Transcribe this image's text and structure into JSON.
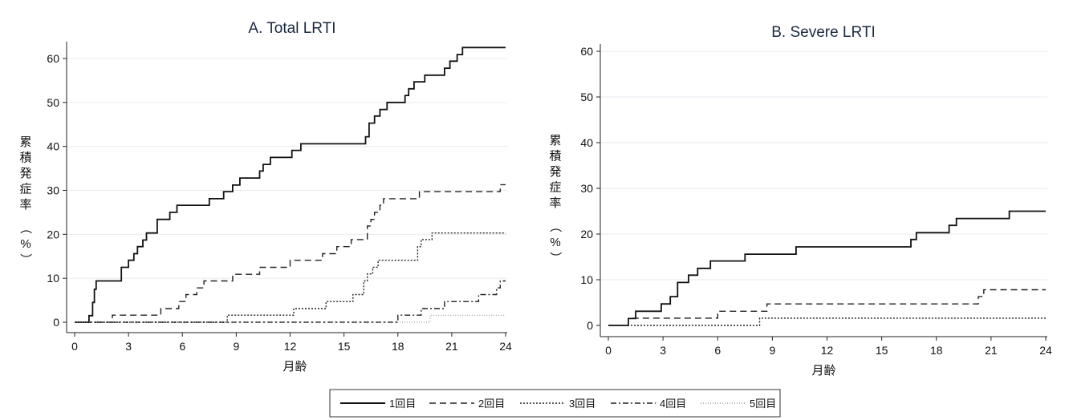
{
  "chart_data": [
    {
      "type": "line",
      "step": true,
      "title": "A. Total LRTI",
      "xlabel": "月齢",
      "ylabel": "累積発症率（%）",
      "xlim": [
        0,
        24
      ],
      "ylim": [
        0,
        62.5
      ],
      "xticks": [
        0,
        3,
        6,
        9,
        12,
        15,
        18,
        21,
        24
      ],
      "yticks": [
        0,
        10,
        20,
        30,
        40,
        50,
        60
      ],
      "ytick_labels": [
        "0",
        "10",
        "20",
        "30",
        "40",
        "50",
        "60"
      ],
      "grid": true,
      "series": [
        {
          "name": "1回目",
          "points": [
            [
              0,
              0
            ],
            [
              0.8,
              0
            ],
            [
              0.8,
              1.5
            ],
            [
              1.0,
              1.5
            ],
            [
              1.0,
              4.5
            ],
            [
              1.1,
              4.5
            ],
            [
              1.1,
              7.5
            ],
            [
              1.2,
              7.5
            ],
            [
              1.2,
              9.4
            ],
            [
              2.6,
              9.4
            ],
            [
              2.6,
              12.5
            ],
            [
              3.0,
              12.5
            ],
            [
              3.0,
              14.1
            ],
            [
              3.3,
              14.1
            ],
            [
              3.3,
              15.6
            ],
            [
              3.5,
              15.6
            ],
            [
              3.5,
              17.2
            ],
            [
              3.8,
              17.2
            ],
            [
              3.8,
              18.7
            ],
            [
              4.0,
              18.7
            ],
            [
              4.0,
              20.3
            ],
            [
              4.6,
              20.3
            ],
            [
              4.6,
              23.4
            ],
            [
              5.3,
              23.4
            ],
            [
              5.3,
              25.0
            ],
            [
              5.7,
              25.0
            ],
            [
              5.7,
              26.6
            ],
            [
              7.5,
              26.6
            ],
            [
              7.5,
              28.1
            ],
            [
              8.3,
              28.1
            ],
            [
              8.3,
              29.7
            ],
            [
              8.8,
              29.7
            ],
            [
              8.8,
              31.2
            ],
            [
              9.2,
              31.2
            ],
            [
              9.2,
              32.8
            ],
            [
              10.3,
              32.8
            ],
            [
              10.3,
              34.4
            ],
            [
              10.5,
              34.4
            ],
            [
              10.5,
              35.9
            ],
            [
              10.9,
              35.9
            ],
            [
              10.9,
              37.5
            ],
            [
              12.1,
              37.5
            ],
            [
              12.1,
              39.1
            ],
            [
              12.6,
              39.1
            ],
            [
              12.6,
              40.6
            ],
            [
              16.2,
              40.6
            ],
            [
              16.2,
              42.2
            ],
            [
              16.4,
              42.2
            ],
            [
              16.4,
              45.3
            ],
            [
              16.7,
              45.3
            ],
            [
              16.7,
              46.9
            ],
            [
              17.0,
              46.9
            ],
            [
              17.0,
              48.4
            ],
            [
              17.4,
              48.4
            ],
            [
              17.4,
              50.0
            ],
            [
              18.4,
              50.0
            ],
            [
              18.4,
              51.6
            ],
            [
              18.6,
              51.6
            ],
            [
              18.6,
              53.1
            ],
            [
              18.9,
              53.1
            ],
            [
              18.9,
              54.7
            ],
            [
              19.5,
              54.7
            ],
            [
              19.5,
              56.2
            ],
            [
              20.6,
              56.2
            ],
            [
              20.6,
              57.8
            ],
            [
              20.9,
              57.8
            ],
            [
              20.9,
              59.4
            ],
            [
              21.3,
              59.4
            ],
            [
              21.3,
              60.9
            ],
            [
              21.6,
              60.9
            ],
            [
              21.6,
              62.5
            ],
            [
              24,
              62.5
            ]
          ]
        },
        {
          "name": "2回目",
          "points": [
            [
              0,
              0
            ],
            [
              2.1,
              0
            ],
            [
              2.1,
              1.6
            ],
            [
              4.8,
              1.6
            ],
            [
              4.8,
              3.1
            ],
            [
              5.8,
              3.1
            ],
            [
              5.8,
              4.7
            ],
            [
              6.2,
              4.7
            ],
            [
              6.2,
              6.3
            ],
            [
              6.8,
              6.3
            ],
            [
              6.8,
              7.8
            ],
            [
              7.2,
              7.8
            ],
            [
              7.2,
              9.4
            ],
            [
              8.8,
              9.4
            ],
            [
              8.8,
              10.9
            ],
            [
              10.3,
              10.9
            ],
            [
              10.3,
              12.5
            ],
            [
              12.0,
              12.5
            ],
            [
              12.0,
              14.1
            ],
            [
              13.8,
              14.1
            ],
            [
              13.8,
              15.6
            ],
            [
              14.6,
              15.6
            ],
            [
              14.6,
              17.2
            ],
            [
              15.4,
              17.2
            ],
            [
              15.4,
              18.8
            ],
            [
              16.3,
              18.8
            ],
            [
              16.3,
              21.9
            ],
            [
              16.5,
              21.9
            ],
            [
              16.5,
              23.4
            ],
            [
              16.7,
              23.4
            ],
            [
              16.7,
              25.0
            ],
            [
              17.0,
              25.0
            ],
            [
              17.0,
              26.6
            ],
            [
              17.2,
              26.6
            ],
            [
              17.2,
              28.1
            ],
            [
              19.2,
              28.1
            ],
            [
              19.2,
              29.7
            ],
            [
              23.7,
              29.7
            ],
            [
              23.7,
              31.3
            ],
            [
              24,
              31.3
            ]
          ]
        },
        {
          "name": "3回目",
          "points": [
            [
              0,
              0
            ],
            [
              8.5,
              0
            ],
            [
              8.5,
              1.6
            ],
            [
              12.2,
              1.6
            ],
            [
              12.2,
              3.1
            ],
            [
              14.0,
              3.1
            ],
            [
              14.0,
              4.7
            ],
            [
              15.5,
              4.7
            ],
            [
              15.5,
              6.3
            ],
            [
              16.1,
              6.3
            ],
            [
              16.1,
              9.4
            ],
            [
              16.3,
              9.4
            ],
            [
              16.3,
              11.0
            ],
            [
              16.6,
              11.0
            ],
            [
              16.6,
              12.5
            ],
            [
              16.9,
              12.5
            ],
            [
              16.9,
              14.1
            ],
            [
              19.1,
              14.1
            ],
            [
              19.1,
              17.2
            ],
            [
              19.3,
              17.2
            ],
            [
              19.3,
              18.8
            ],
            [
              19.9,
              18.8
            ],
            [
              19.9,
              20.3
            ],
            [
              24,
              20.3
            ]
          ]
        },
        {
          "name": "4回目",
          "points": [
            [
              0,
              0
            ],
            [
              18.0,
              0
            ],
            [
              18.0,
              1.6
            ],
            [
              19.3,
              1.6
            ],
            [
              19.3,
              3.1
            ],
            [
              20.6,
              3.1
            ],
            [
              20.6,
              4.7
            ],
            [
              22.5,
              4.7
            ],
            [
              22.5,
              6.3
            ],
            [
              23.5,
              6.3
            ],
            [
              23.5,
              7.8
            ],
            [
              23.7,
              7.8
            ],
            [
              23.7,
              9.4
            ],
            [
              24,
              9.4
            ]
          ]
        },
        {
          "name": "5回目",
          "points": [
            [
              0,
              0
            ],
            [
              19.8,
              0
            ],
            [
              19.8,
              1.6
            ],
            [
              24,
              1.6
            ]
          ]
        }
      ]
    },
    {
      "type": "line",
      "step": true,
      "title": "B. Severe LRTI",
      "xlabel": "月齢",
      "ylabel": "累積発症率（%）",
      "xlim": [
        0,
        24
      ],
      "ylim": [
        0,
        60
      ],
      "xticks": [
        0,
        3,
        6,
        9,
        12,
        15,
        18,
        21,
        24
      ],
      "yticks": [
        0,
        10,
        20,
        30,
        40,
        50,
        60
      ],
      "ytick_labels": [
        "0",
        "10",
        "20",
        "30",
        "40",
        "50",
        "60"
      ],
      "grid": true,
      "series": [
        {
          "name": "1回目",
          "points": [
            [
              0,
              0
            ],
            [
              1.1,
              0
            ],
            [
              1.1,
              1.5
            ],
            [
              1.5,
              1.5
            ],
            [
              1.5,
              3.1
            ],
            [
              2.9,
              3.1
            ],
            [
              2.9,
              4.7
            ],
            [
              3.4,
              4.7
            ],
            [
              3.4,
              6.3
            ],
            [
              3.8,
              6.3
            ],
            [
              3.8,
              9.4
            ],
            [
              4.4,
              9.4
            ],
            [
              4.4,
              11.0
            ],
            [
              4.9,
              11.0
            ],
            [
              4.9,
              12.5
            ],
            [
              5.6,
              12.5
            ],
            [
              5.6,
              14.1
            ],
            [
              7.5,
              14.1
            ],
            [
              7.5,
              15.6
            ],
            [
              10.3,
              15.6
            ],
            [
              10.3,
              17.2
            ],
            [
              16.6,
              17.2
            ],
            [
              16.6,
              18.8
            ],
            [
              16.9,
              18.8
            ],
            [
              16.9,
              20.3
            ],
            [
              18.7,
              20.3
            ],
            [
              18.7,
              21.9
            ],
            [
              19.1,
              21.9
            ],
            [
              19.1,
              23.4
            ],
            [
              22.0,
              23.4
            ],
            [
              22.0,
              25.0
            ],
            [
              24,
              25.0
            ]
          ]
        },
        {
          "name": "2回目",
          "points": [
            [
              0,
              0
            ],
            [
              1.1,
              0
            ],
            [
              1.1,
              1.6
            ],
            [
              6.0,
              1.6
            ],
            [
              6.0,
              3.1
            ],
            [
              8.7,
              3.1
            ],
            [
              8.7,
              4.7
            ],
            [
              20.3,
              4.7
            ],
            [
              20.3,
              6.3
            ],
            [
              20.6,
              6.3
            ],
            [
              20.6,
              7.8
            ],
            [
              24,
              7.8
            ]
          ]
        },
        {
          "name": "3回目",
          "points": [
            [
              0,
              0
            ],
            [
              8.3,
              0
            ],
            [
              8.3,
              1.6
            ],
            [
              24,
              1.6
            ]
          ]
        }
      ]
    }
  ],
  "legend": {
    "items": [
      {
        "label": "1回目",
        "style": "solid"
      },
      {
        "label": "2回目",
        "style": "dashed"
      },
      {
        "label": "3回目",
        "style": "dotted"
      },
      {
        "label": "4回目",
        "style": "dashdot"
      },
      {
        "label": "5回目",
        "style": "fine-dotted"
      }
    ]
  }
}
